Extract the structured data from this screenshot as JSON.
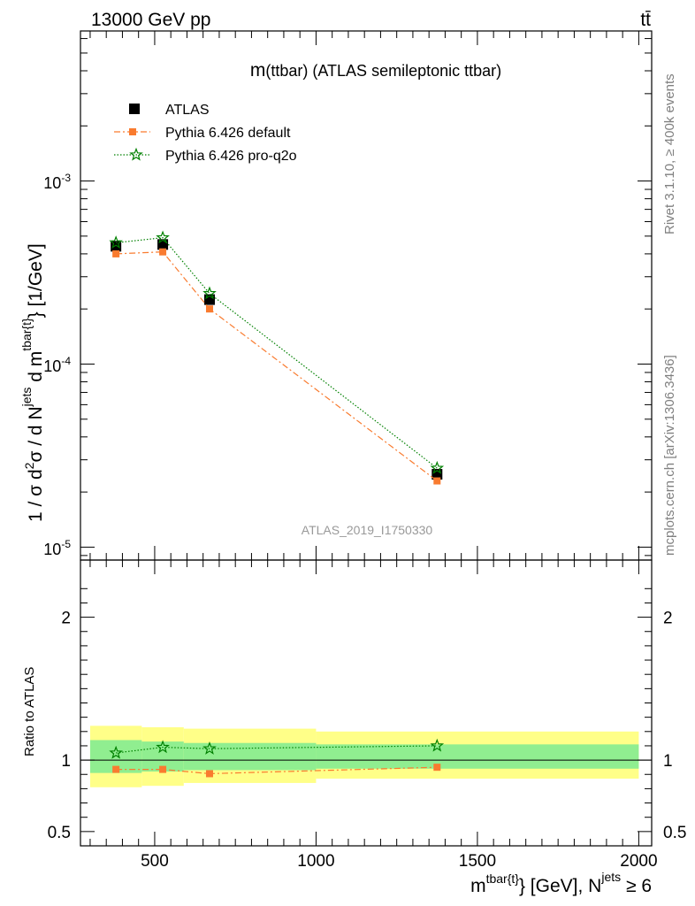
{
  "header": {
    "energy_label": "13000 GeV pp",
    "process_label": "tt̄"
  },
  "side": {
    "rivet_label": "Rivet 3.1.10, ≥ 400k events",
    "mcplots_label": "mcplots.cern.ch [arXiv:1306.3436]"
  },
  "chart_data": [
    {
      "type": "scatter",
      "panel": "main",
      "title": "m(ttbar) (ATLAS semileptonic ttbar)",
      "title_main": "m",
      "title_rest": "(ttbar) (ATLAS semileptonic ttbar)",
      "watermark": "ATLAS_2019_I1750330",
      "yscale": "log",
      "ylim": [
        8.5e-06,
        0.0066
      ],
      "xlim": [
        270,
        2040
      ],
      "ylabel": "1 / σ d²σ / d N^jets d m^tbar{t} [1/GeV]",
      "y_tick_labels": [
        {
          "base": "10",
          "exp": "-5",
          "value": 1e-05
        },
        {
          "base": "10",
          "exp": "-4",
          "value": 0.0001
        },
        {
          "base": "10",
          "exp": "-3",
          "value": 0.001
        }
      ],
      "legend": {
        "placement": "top-left",
        "entries": [
          "ATLAS",
          "Pythia 6.426 default",
          "Pythia 6.426 pro-q2o"
        ]
      },
      "series": [
        {
          "name": "ATLAS",
          "marker": "square",
          "color": "#000000",
          "x": [
            380,
            525,
            670,
            1375
          ],
          "y": [
            0.00044,
            0.00045,
            0.000225,
            2.5e-05
          ]
        },
        {
          "name": "Pythia 6.426 default",
          "marker": "square-small",
          "color": "#f97b2f",
          "linestyle": "dashdot",
          "x": [
            380,
            525,
            670,
            1375
          ],
          "y": [
            0.0004,
            0.00041,
            0.0002,
            2.3e-05
          ]
        },
        {
          "name": "Pythia 6.426 pro-q2o",
          "marker": "star",
          "color": "#008000",
          "linestyle": "dotted",
          "x": [
            380,
            525,
            670,
            1375
          ],
          "y": [
            0.00046,
            0.00049,
            0.000243,
            2.7e-05
          ]
        }
      ]
    },
    {
      "type": "scatter",
      "panel": "ratio",
      "ylabel": "Ratio to ATLAS",
      "ylim": [
        0.4,
        2.4
      ],
      "y_ticks": [
        0.5,
        1,
        2
      ],
      "y_tick_labels": [
        "0.5",
        "1",
        "2"
      ],
      "xlim": [
        270,
        2040
      ],
      "x_ticks": [
        500,
        1000,
        1500,
        2000
      ],
      "x_tick_labels": [
        "500",
        "1000",
        "1500",
        "2000"
      ],
      "xlabel_main": "m",
      "xlabel_sup1": "tbar{t}",
      "xlabel_mid": "} [GeV], N",
      "xlabel_sup2": "jets",
      "xlabel_end": " ≥ 6",
      "bands": {
        "bin_edges": [
          300,
          460,
          590,
          1000,
          2000
        ],
        "outer_low": [
          0.81,
          0.82,
          0.84,
          0.87
        ],
        "outer_high": [
          1.24,
          1.23,
          1.22,
          1.2
        ],
        "inner_low": [
          0.91,
          0.92,
          0.93,
          0.94
        ],
        "inner_high": [
          1.14,
          1.13,
          1.12,
          1.11
        ],
        "outer_color": "#ffff88",
        "inner_color": "#90ee90"
      },
      "series": [
        {
          "name": "Pythia 6.426 default",
          "color": "#f97b2f",
          "x": [
            380,
            525,
            670,
            1375
          ],
          "y": [
            0.935,
            0.935,
            0.905,
            0.95
          ],
          "err": [
            0.01,
            0.012,
            0.02,
            0.02
          ]
        },
        {
          "name": "Pythia 6.426 pro-q2o",
          "color": "#008000",
          "x": [
            380,
            525,
            670,
            1375
          ],
          "y": [
            1.05,
            1.09,
            1.08,
            1.1
          ]
        }
      ]
    }
  ]
}
